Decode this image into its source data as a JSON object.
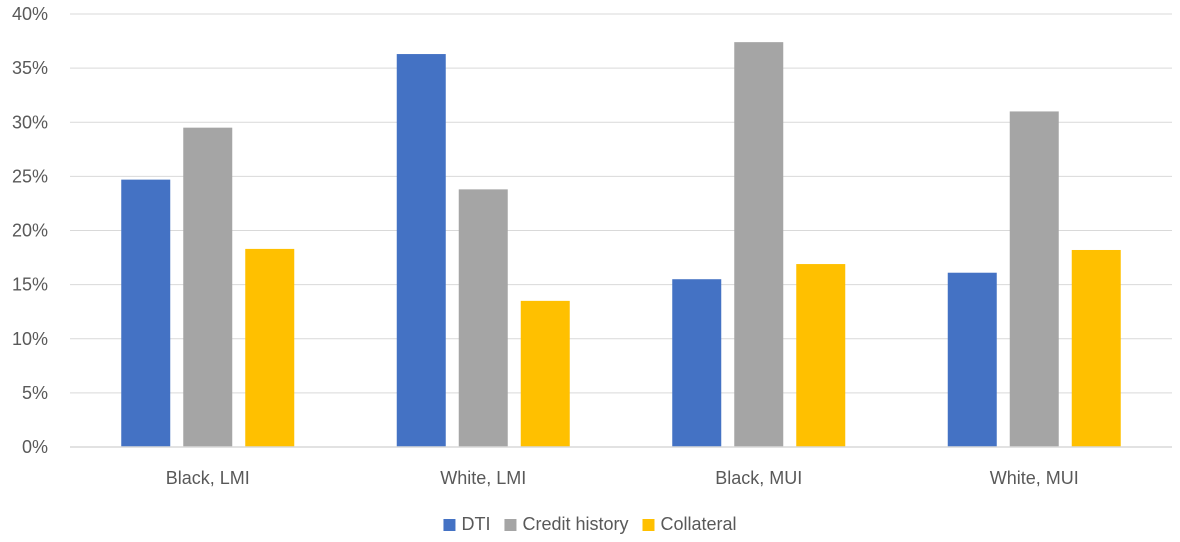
{
  "chart_data": {
    "type": "bar",
    "title": "",
    "xlabel": "",
    "ylabel": "",
    "categories": [
      "Black, LMI",
      "White, LMI",
      "Black, MUI",
      "White, MUI"
    ],
    "series": [
      {
        "name": "DTI",
        "values": [
          24.7,
          36.3,
          15.5,
          16.1
        ],
        "color": "#4472C4"
      },
      {
        "name": "Credit history",
        "values": [
          29.5,
          23.8,
          37.4,
          31.0
        ],
        "color": "#A5A5A5"
      },
      {
        "name": "Collateral",
        "values": [
          18.3,
          13.5,
          16.9,
          18.2
        ],
        "color": "#FFC000"
      }
    ],
    "ylim": [
      0,
      40
    ],
    "yticks": [
      "0%",
      "5%",
      "10%",
      "15%",
      "20%",
      "25%",
      "30%",
      "35%",
      "40%"
    ],
    "grid": true,
    "legend_position": "bottom"
  }
}
